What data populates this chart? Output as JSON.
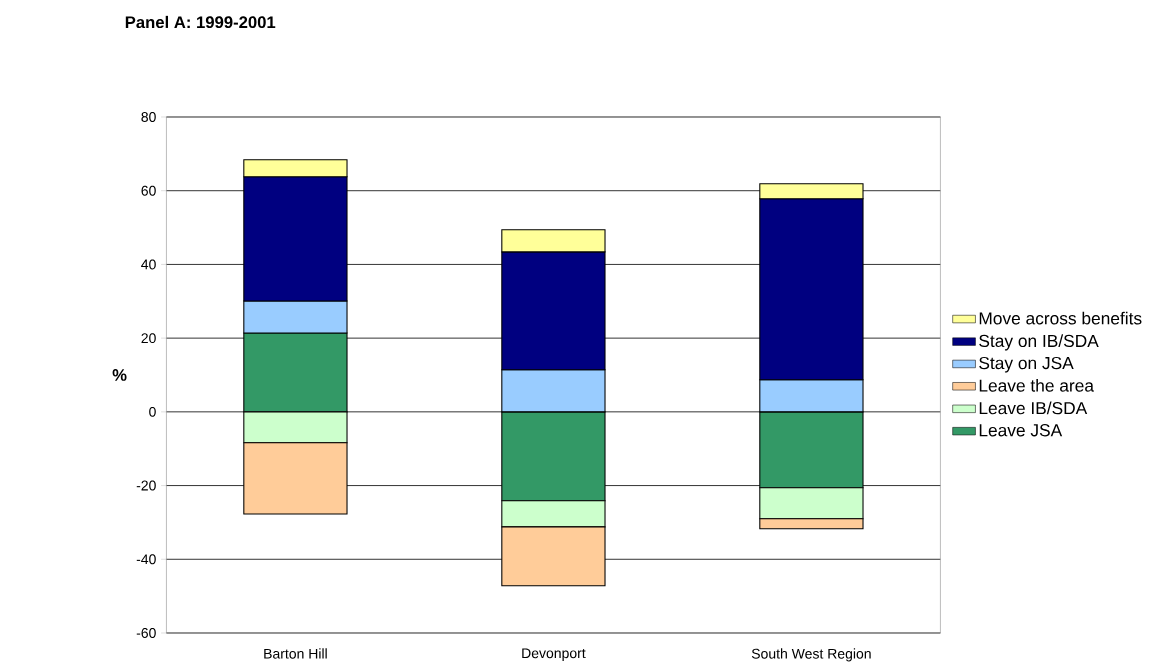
{
  "chart_data": {
    "type": "bar",
    "title": "Panel A: 1999-2001",
    "ylabel": "%",
    "categories": [
      "Barton Hill",
      "Devonport",
      "South West Region"
    ],
    "stacked": true,
    "ylim": [
      -60,
      80
    ],
    "yticks": [
      -60,
      -40,
      -20,
      0,
      20,
      40,
      60,
      80
    ],
    "grid": "y",
    "legend": "right",
    "series": [
      {
        "name": "Leave JSA",
        "color": "#339966",
        "values": [
          21.4,
          -24.1,
          -20.6
        ]
      },
      {
        "name": "Leave IB/SDA",
        "color": "#ccffcc",
        "values": [
          -8.4,
          -7.1,
          -8.4
        ]
      },
      {
        "name": "Leave the area",
        "color": "#ffcc99",
        "values": [
          -19.3,
          -16.0,
          -2.7
        ]
      },
      {
        "name": "Stay on JSA",
        "color": "#99ccff",
        "values": [
          8.7,
          11.4,
          8.7
        ]
      },
      {
        "name": "Stay on IB/SDA",
        "color": "#000080",
        "values": [
          33.7,
          32.0,
          49.1
        ]
      },
      {
        "name": "Move across benefits",
        "color": "#ffff99",
        "values": [
          4.6,
          6.0,
          4.1
        ]
      }
    ]
  }
}
